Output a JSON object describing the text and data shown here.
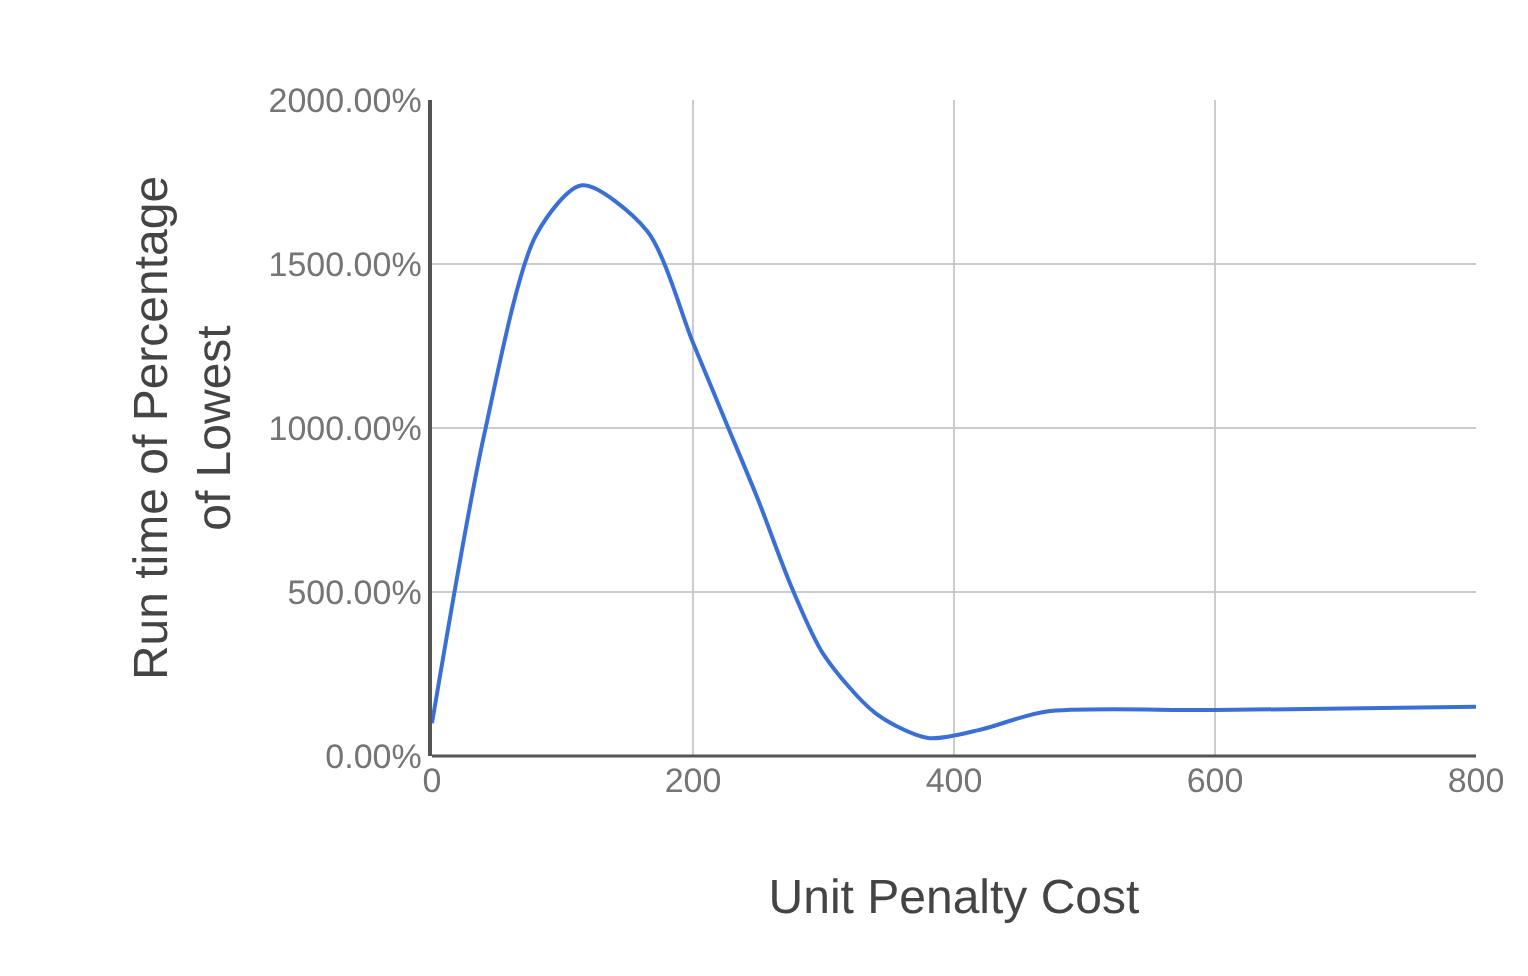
{
  "chart_data": {
    "type": "line",
    "xlabel": "Unit Penalty Cost",
    "ylabel": "Run time of Percentage\nof Lowest",
    "x": [
      0,
      40,
      80,
      115,
      165,
      200,
      225,
      250,
      275,
      300,
      340,
      380,
      420,
      470,
      600,
      800
    ],
    "series": [
      {
        "color": "#3a6fd8",
        "values": [
          100,
          980,
          1590,
          1740,
          1600,
          1260,
          1020,
          780,
          520,
          310,
          130,
          55,
          80,
          135,
          140,
          150
        ]
      }
    ],
    "xlim": [
      0,
      800
    ],
    "xticks": [
      0,
      200,
      400,
      600,
      800
    ],
    "ylim": [
      0,
      2000
    ],
    "yticks": [
      {
        "value": 0,
        "label": "0.00%"
      },
      {
        "value": 500,
        "label": "500.00%"
      },
      {
        "value": 1000,
        "label": "1000.00%"
      },
      {
        "value": 1500,
        "label": "1500.00%"
      },
      {
        "value": 2000,
        "label": "2000.00%"
      }
    ],
    "grid": true,
    "marker": "none",
    "line_style": "solid"
  }
}
